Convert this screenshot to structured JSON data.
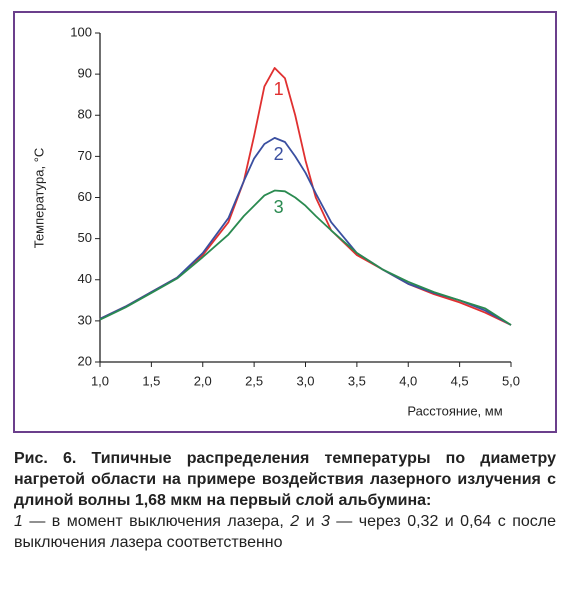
{
  "chart_data": {
    "type": "line",
    "x_label": "Расстояние, мм",
    "y_label": "Температура, °C",
    "x": [
      1.0,
      1.25,
      1.5,
      1.75,
      2.0,
      2.25,
      2.4,
      2.5,
      2.6,
      2.7,
      2.8,
      2.9,
      3.0,
      3.1,
      3.25,
      3.5,
      3.75,
      4.0,
      4.25,
      4.5,
      4.75,
      5.0
    ],
    "series": [
      {
        "name": "1",
        "color": "#e03030",
        "values": [
          30.5,
          33.5,
          37,
          40.5,
          46,
          54,
          64,
          75,
          87,
          91.5,
          89,
          80,
          69,
          60,
          52,
          46,
          42.5,
          39,
          36.5,
          34.5,
          32,
          29
        ]
      },
      {
        "name": "2",
        "color": "#3a4fa0",
        "values": [
          30.5,
          33.5,
          37,
          40.5,
          46.5,
          55,
          64,
          69.5,
          73,
          74.5,
          73.5,
          70,
          66,
          61,
          54,
          46.5,
          42.5,
          39,
          36.8,
          35,
          32.5,
          29
        ]
      },
      {
        "name": "3",
        "color": "#2a8a50",
        "values": [
          30.3,
          33.3,
          36.8,
          40.3,
          45.5,
          51,
          55.5,
          58,
          60.5,
          61.7,
          61.5,
          60,
          58,
          55.5,
          52,
          46.5,
          42.5,
          39.5,
          37,
          35,
          33,
          29
        ]
      }
    ],
    "xlim": [
      1.0,
      5.0
    ],
    "ylim": [
      20,
      100
    ],
    "xticks": [
      {
        "value": 1.0,
        "label": "1,0"
      },
      {
        "value": 1.5,
        "label": "1,5"
      },
      {
        "value": 2.0,
        "label": "2,0"
      },
      {
        "value": 2.5,
        "label": "2,5"
      },
      {
        "value": 3.0,
        "label": "3,0"
      },
      {
        "value": 3.5,
        "label": "3,5"
      },
      {
        "value": 4.0,
        "label": "4,0"
      },
      {
        "value": 4.5,
        "label": "4,5"
      },
      {
        "value": 5.0,
        "label": "5,0"
      }
    ],
    "yticks": [
      20,
      30,
      40,
      50,
      60,
      70,
      80,
      90,
      100
    ],
    "grid": false
  },
  "caption": {
    "title": "Рис. 6. Типичные распределения температуры по диаметру нагретой области на примере воздействия лазерного излучения с длиной волны 1,68 мкм на первый слой альбумина:",
    "note": [
      "1",
      " — в момент выключения лазера, ",
      "2",
      " и ",
      "3",
      " — через 0,32 и 0,64 с после выключения лазера соответственно"
    ]
  }
}
